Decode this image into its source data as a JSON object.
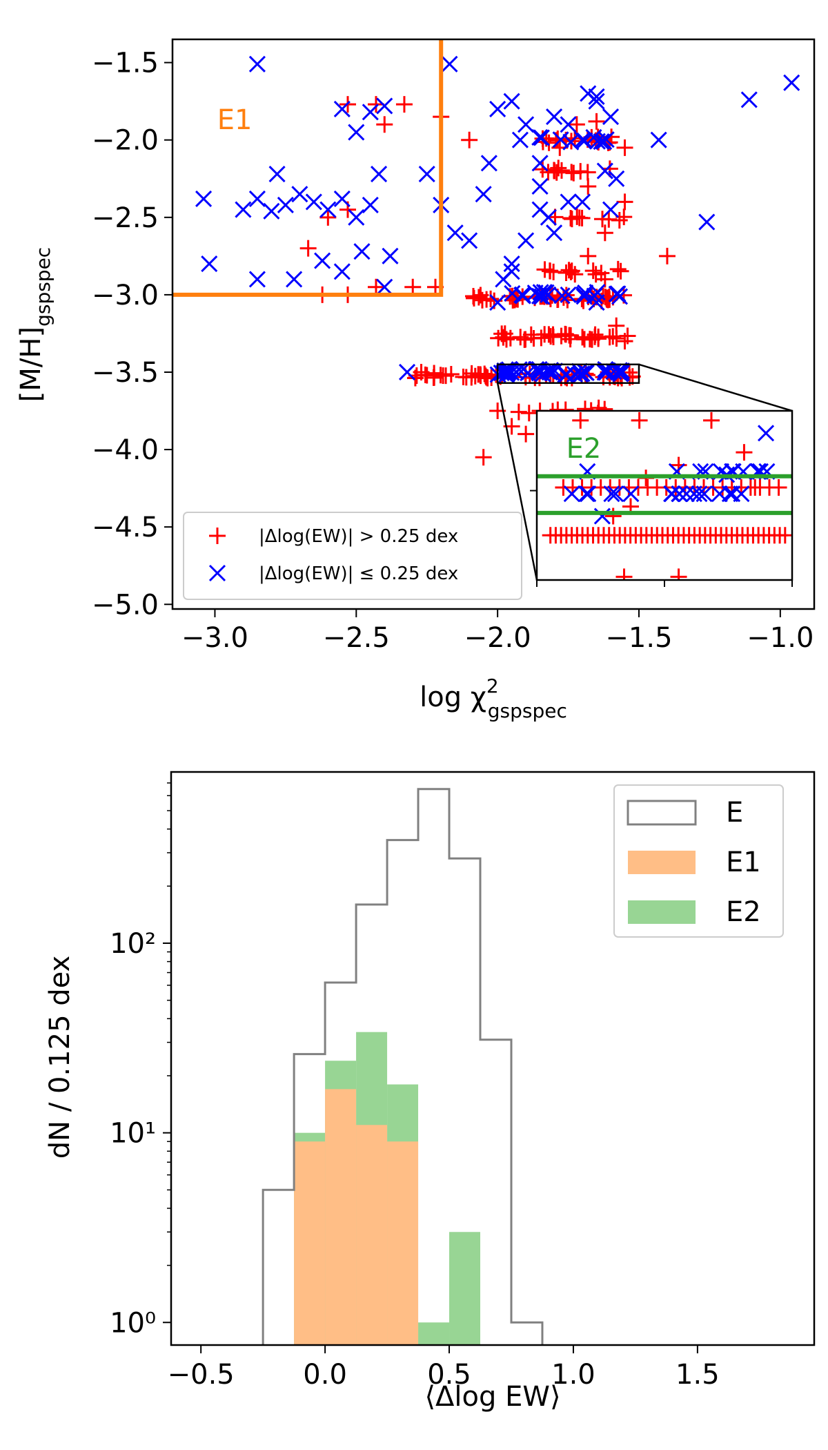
{
  "chart_data": [
    {
      "type": "scatter",
      "xlabel": "log χ",
      "xlabel_sup": "2",
      "xlabel_sub": "gspspec",
      "ylabel": "[M/H]",
      "ylabel_sub": "gspspec",
      "xlim": [
        -3.15,
        -0.88
      ],
      "ylim": [
        -5.03,
        -1.35
      ],
      "xticks": [
        -3.0,
        -2.5,
        -2.0,
        -1.5,
        -1.0
      ],
      "xtick_labels": [
        "−3.0",
        "−2.5",
        "−2.0",
        "−1.5",
        "−1.0"
      ],
      "yticks": [
        -1.5,
        -2.0,
        -2.5,
        -3.0,
        -3.5,
        -4.0,
        -4.5,
        -5.0
      ],
      "ytick_labels": [
        "−1.5",
        "−2.0",
        "−2.5",
        "−3.0",
        "−3.5",
        "−4.0",
        "−4.5",
        "−5.0"
      ],
      "grid": false,
      "legend_position": "lower-left",
      "regions": [
        {
          "name": "E1",
          "label": "E1",
          "color": "#ff7f0e",
          "x_max": -2.2,
          "y_min": -3.0
        },
        {
          "name": "E2",
          "label": "E2",
          "color": "#2ca02c",
          "y_range": [
            -3.57,
            -3.45
          ],
          "x_range": [
            -2.0,
            -1.5
          ]
        }
      ],
      "series": [
        {
          "name": "|Δlog(EW)| > 0.25 dex",
          "marker": "plus",
          "color": "#ff0000",
          "points": [
            [
              -2.53,
              -1.77
            ],
            [
              -2.43,
              -1.77
            ],
            [
              -2.33,
              -1.77
            ],
            [
              -2.4,
              -1.9
            ],
            [
              -2.1,
              -2.0
            ],
            [
              -2.2,
              -1.85
            ],
            [
              -2.67,
              -2.7
            ],
            [
              -2.62,
              -3.0
            ],
            [
              -2.53,
              -3.0
            ],
            [
              -2.43,
              -2.95
            ],
            [
              -2.3,
              -2.95
            ],
            [
              -2.22,
              -2.95
            ],
            [
              -2.53,
              -2.45
            ],
            [
              -2.6,
              -2.5
            ],
            [
              -2.27,
              -3.5
            ],
            [
              -2.25,
              -3.52
            ],
            [
              -1.68,
              -2.75
            ],
            [
              -1.62,
              -2.6
            ],
            [
              -1.55,
              -2.4
            ],
            [
              -1.4,
              -2.75
            ],
            [
              -1.65,
              -1.88
            ],
            [
              -1.55,
              -2.05
            ],
            [
              -1.78,
              -2.05
            ],
            [
              -1.72,
              -1.9
            ],
            [
              -1.8,
              -2.2
            ],
            [
              -1.68,
              -2.3
            ],
            [
              -1.62,
              -2.9
            ],
            [
              -1.58,
              -3.2
            ],
            [
              -1.95,
              -3.85
            ],
            [
              -1.9,
              -3.9
            ],
            [
              -1.85,
              -3.75
            ],
            [
              -2.05,
              -4.05
            ],
            [
              -2.0,
              -3.75
            ],
            [
              -1.55,
              -3.3
            ]
          ],
          "bands": [
            {
              "x_min": -2.3,
              "x_max": -1.52,
              "y": -3.52,
              "count": 60
            },
            {
              "x_min": -2.1,
              "x_max": -1.55,
              "y": -3.02,
              "count": 50
            },
            {
              "x_min": -2.0,
              "x_max": -1.52,
              "y": -3.27,
              "count": 35
            },
            {
              "x_min": -1.85,
              "x_max": -1.58,
              "y": -2.0,
              "count": 18
            },
            {
              "x_min": -1.95,
              "x_max": -1.6,
              "y": -3.75,
              "count": 10
            },
            {
              "x_min": -1.85,
              "x_max": -1.55,
              "y": -2.85,
              "count": 14
            },
            {
              "x_min": -1.85,
              "x_max": -1.6,
              "y": -2.2,
              "count": 12
            },
            {
              "x_min": -1.8,
              "x_max": -1.55,
              "y": -2.5,
              "count": 10
            }
          ]
        },
        {
          "name": "|Δlog(EW)| ≤ 0.25 dex",
          "marker": "x",
          "color": "#0000ff",
          "points": [
            [
              -2.85,
              -1.51
            ],
            [
              -3.04,
              -2.38
            ],
            [
              -3.02,
              -2.8
            ],
            [
              -2.9,
              -2.45
            ],
            [
              -2.85,
              -2.38
            ],
            [
              -2.78,
              -2.22
            ],
            [
              -2.8,
              -2.46
            ],
            [
              -2.75,
              -2.42
            ],
            [
              -2.7,
              -2.35
            ],
            [
              -2.65,
              -2.4
            ],
            [
              -2.6,
              -2.45
            ],
            [
              -2.55,
              -2.38
            ],
            [
              -2.5,
              -2.5
            ],
            [
              -2.45,
              -2.42
            ],
            [
              -2.42,
              -2.22
            ],
            [
              -2.55,
              -1.8
            ],
            [
              -2.5,
              -1.95
            ],
            [
              -2.45,
              -1.82
            ],
            [
              -2.4,
              -1.78
            ],
            [
              -2.85,
              -2.9
            ],
            [
              -2.72,
              -2.9
            ],
            [
              -2.62,
              -2.78
            ],
            [
              -2.55,
              -2.85
            ],
            [
              -2.48,
              -2.72
            ],
            [
              -2.4,
              -2.95
            ],
            [
              -2.38,
              -2.75
            ],
            [
              -2.2,
              -2.42
            ],
            [
              -2.25,
              -2.22
            ],
            [
              -2.17,
              -1.51
            ],
            [
              -2.15,
              -2.6
            ],
            [
              -2.1,
              -2.65
            ],
            [
              -2.05,
              -2.35
            ],
            [
              -2.03,
              -2.15
            ],
            [
              -2.0,
              -1.8
            ],
            [
              -1.95,
              -1.75
            ],
            [
              -1.92,
              -2.0
            ],
            [
              -1.9,
              -1.9
            ],
            [
              -1.85,
              -2.15
            ],
            [
              -1.8,
              -1.85
            ],
            [
              -1.75,
              -1.9
            ],
            [
              -1.7,
              -2.0
            ],
            [
              -1.65,
              -1.75
            ],
            [
              -1.6,
              -1.85
            ],
            [
              -1.62,
              -2.2
            ],
            [
              -1.58,
              -2.25
            ],
            [
              -1.85,
              -2.45
            ],
            [
              -1.82,
              -2.5
            ],
            [
              -1.8,
              -2.6
            ],
            [
              -1.75,
              -2.4
            ],
            [
              -1.9,
              -2.65
            ],
            [
              -1.95,
              -2.8
            ],
            [
              -1.98,
              -2.9
            ],
            [
              -1.85,
              -2.3
            ],
            [
              -1.65,
              -1.72
            ],
            [
              -1.68,
              -1.7
            ],
            [
              -2.32,
              -3.5
            ],
            [
              -1.43,
              -2.0
            ],
            [
              -1.26,
              -2.53
            ],
            [
              -1.11,
              -1.74
            ],
            [
              -0.96,
              -1.63
            ],
            [
              -1.6,
              -2.45
            ],
            [
              -1.7,
              -2.4
            ],
            [
              -1.75,
              -3.0
            ],
            [
              -1.65,
              -3.05
            ],
            [
              -2.0,
              -3.05
            ],
            [
              -1.95,
              -2.85
            ]
          ],
          "bands": [
            {
              "x_min": -2.0,
              "x_max": -1.55,
              "y": -3.5,
              "count": 45
            },
            {
              "x_min": -1.95,
              "x_max": -1.55,
              "y": -3.0,
              "count": 20
            },
            {
              "x_min": -1.9,
              "x_max": -1.6,
              "y": -2.0,
              "count": 10
            }
          ]
        }
      ],
      "inset": {
        "label": "E2",
        "xlim": [
          -2.05,
          -0.88
        ],
        "ylim": [
          -3.78,
          -3.25
        ],
        "e2_lines": [
          -3.455,
          -3.57
        ],
        "red_rows": [
          {
            "y": -3.49,
            "x_min": -1.95,
            "x_max": -0.92,
            "count": 24
          },
          {
            "y": -3.64,
            "x_min": -2.0,
            "x_max": -0.9,
            "count": 45
          }
        ],
        "red_scatter": [
          [
            -1.85,
            -3.28
          ],
          [
            -1.58,
            -3.28
          ],
          [
            -1.25,
            -3.28
          ],
          [
            -1.1,
            -3.38
          ],
          [
            -1.4,
            -3.42
          ],
          [
            -1.55,
            -3.46
          ],
          [
            -1.62,
            -3.55
          ],
          [
            -1.7,
            -3.58
          ],
          [
            -1.4,
            -3.77
          ],
          [
            -1.65,
            -3.77
          ],
          [
            -1.05,
            -3.49
          ],
          [
            -1.55,
            -3.84
          ]
        ],
        "blue_rows": [
          {
            "y": -3.51,
            "x_min": -1.9,
            "x_max": -1.1,
            "count": 18
          },
          {
            "y": -3.44,
            "x_min": -1.9,
            "x_max": -0.95,
            "count": 10
          }
        ],
        "blue_scatter": [
          [
            -1.0,
            -3.32
          ],
          [
            -1.75,
            -3.58
          ],
          [
            -1.3,
            -3.44
          ],
          [
            -1.15,
            -3.44
          ],
          [
            -1.18,
            -3.45
          ]
        ]
      },
      "legend": [
        {
          "label": "|Δlog(EW)| > 0.25 dex",
          "marker": "plus",
          "color": "#ff0000"
        },
        {
          "label": "|Δlog(EW)| ≤ 0.25 dex",
          "marker": "x",
          "color": "#0000ff"
        }
      ]
    },
    {
      "type": "bar",
      "xlabel": "⟨Δlog EW⟩",
      "ylabel": "dN / 0.125 dex",
      "yscale": "log",
      "xlim": [
        -0.62,
        1.97
      ],
      "ylim": [
        0.76,
        800
      ],
      "xticks": [
        -0.5,
        0.0,
        0.5,
        1.0,
        1.5
      ],
      "xtick_labels": [
        "−0.5",
        "0.0",
        "0.5",
        "1.0",
        "1.5"
      ],
      "yticks": [
        1,
        10,
        100
      ],
      "ytick_labels": [
        "10⁰",
        "10¹",
        "10²"
      ],
      "grid": false,
      "legend_position": "top-right",
      "bin_width": 0.125,
      "bin_edges": [
        -0.25,
        -0.125,
        0.0,
        0.125,
        0.25,
        0.375,
        0.5,
        0.625,
        0.75,
        0.875
      ],
      "series": [
        {
          "name": "E",
          "style": "step",
          "color": "#808080",
          "values": [
            5,
            26,
            62,
            160,
            350,
            650,
            280,
            31,
            1
          ]
        },
        {
          "name": "E2",
          "style": "filled",
          "color": "#98d594",
          "values": [
            0,
            10,
            24,
            34,
            18,
            1,
            3,
            0,
            0
          ]
        },
        {
          "name": "E1",
          "style": "filled",
          "color": "#ffbe86",
          "values": [
            0,
            9,
            17,
            11,
            9,
            0,
            0,
            0,
            0
          ]
        }
      ],
      "legend": [
        {
          "label": "E",
          "style": "outline",
          "color": "#808080"
        },
        {
          "label": "E1",
          "style": "filled",
          "color": "#ffbe86"
        },
        {
          "label": "E2",
          "style": "filled",
          "color": "#98d594"
        }
      ]
    }
  ]
}
